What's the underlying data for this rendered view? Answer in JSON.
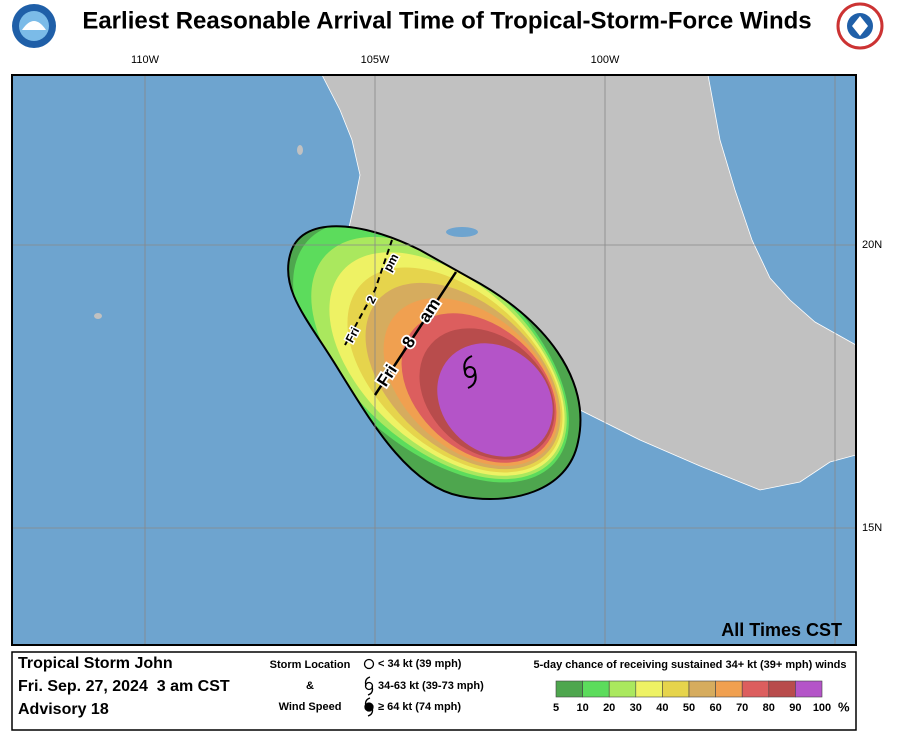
{
  "header": {
    "title": "Earliest Reasonable Arrival Time of Tropical-Storm-Force Winds"
  },
  "map": {
    "lon_labels": [
      "110W",
      "105W",
      "100W"
    ],
    "lat_labels": [
      "20N",
      "15N"
    ],
    "time_zone_note": "All Times CST",
    "contours": [
      {
        "day": "Fri",
        "hour": "2",
        "ampm": "pm"
      },
      {
        "day": "Fri",
        "hour": "8",
        "ampm": "am"
      }
    ]
  },
  "info": {
    "storm": "Tropical Storm John",
    "time": "Fri. Sep. 27, 2024  3 am CST",
    "advisory": "Advisory 18"
  },
  "key": {
    "heading_1": "Storm Location",
    "heading_2": "&",
    "heading_3": "Wind Speed",
    "symbols": [
      "< 34 kt (39 mph)",
      "34-63 kt (39-73 mph)",
      "≥ 64 kt (74 mph)"
    ]
  },
  "scale": {
    "title": "5-day chance of receiving sustained 34+ kt (39+ mph) winds",
    "labels": [
      5,
      10,
      20,
      30,
      40,
      50,
      60,
      70,
      80,
      90,
      100
    ],
    "unit": "%",
    "colors": [
      "#4ea64e",
      "#5cdc5c",
      "#aae85e",
      "#eef264",
      "#e6d44c",
      "#d6ac5e",
      "#f0a050",
      "#dc5e5e",
      "#b84c4c",
      "#b454c8"
    ]
  }
}
